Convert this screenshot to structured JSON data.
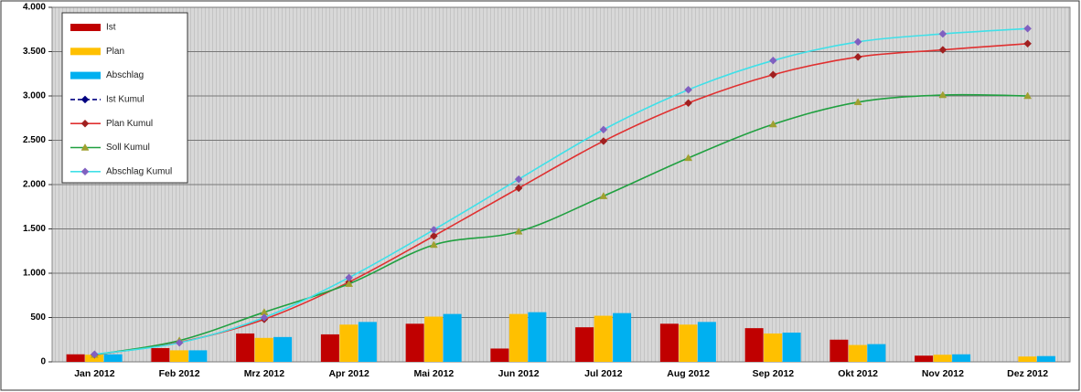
{
  "chart_data": {
    "type": "combo",
    "categories": [
      "Jan 2012",
      "Feb 2012",
      "Mrz 2012",
      "Apr 2012",
      "Mai 2012",
      "Jun 2012",
      "Jul 2012",
      "Aug 2012",
      "Sep 2012",
      "Okt 2012",
      "Nov 2012",
      "Dez 2012"
    ],
    "series": [
      {
        "name": "Ist",
        "kind": "bar",
        "color": "#c00000",
        "values": [
          85,
          155,
          320,
          310,
          430,
          150,
          390,
          430,
          380,
          250,
          70,
          null
        ]
      },
      {
        "name": "Plan",
        "kind": "bar",
        "color": "#ffc000",
        "values": [
          80,
          130,
          270,
          420,
          510,
          540,
          520,
          420,
          320,
          190,
          80,
          60
        ]
      },
      {
        "name": "Abschlag",
        "kind": "bar",
        "color": "#00b0f0",
        "values": [
          85,
          130,
          280,
          450,
          540,
          560,
          550,
          450,
          330,
          200,
          85,
          65
        ]
      },
      {
        "name": "Ist Kumul",
        "kind": "line",
        "color": "#000080",
        "marker_color": "#000080",
        "marker": "diamond",
        "dashed": true,
        "values": [
          null,
          null,
          null,
          null,
          null,
          null,
          null,
          null,
          null,
          null,
          null,
          null
        ]
      },
      {
        "name": "Plan Kumul",
        "kind": "line",
        "color": "#e03030",
        "marker_color": "#a02020",
        "marker": "diamond",
        "values": [
          80,
          220,
          480,
          900,
          1420,
          1960,
          2490,
          2920,
          3240,
          3440,
          3520,
          3590
        ]
      },
      {
        "name": "Soll Kumul",
        "kind": "line",
        "color": "#20a040",
        "marker_color": "#a0a030",
        "marker": "triangle",
        "values": [
          80,
          240,
          560,
          880,
          1320,
          1470,
          1870,
          2300,
          2680,
          2930,
          3010,
          3000
        ]
      },
      {
        "name": "Abschlag Kumul",
        "kind": "line",
        "color": "#40e0e8",
        "marker_color": "#8060c0",
        "marker": "diamond",
        "values": [
          85,
          215,
          500,
          950,
          1490,
          2060,
          2620,
          3070,
          3400,
          3610,
          3700,
          3760
        ]
      }
    ],
    "ylim": [
      0,
      4000
    ],
    "yticks": [
      0,
      {
        "value": 500,
        "label": "500"
      },
      {
        "value": 1000,
        "label": "1.000"
      },
      {
        "value": 1500,
        "label": "1.500"
      },
      {
        "value": 2000,
        "label": "2.000"
      },
      {
        "value": 2500,
        "label": "2.500"
      },
      {
        "value": 3000,
        "label": "3.000"
      },
      {
        "value": 3500,
        "label": "3.500"
      },
      {
        "value": 4000,
        "label": "4.000"
      }
    ],
    "grid": true,
    "legend": "top-left"
  }
}
